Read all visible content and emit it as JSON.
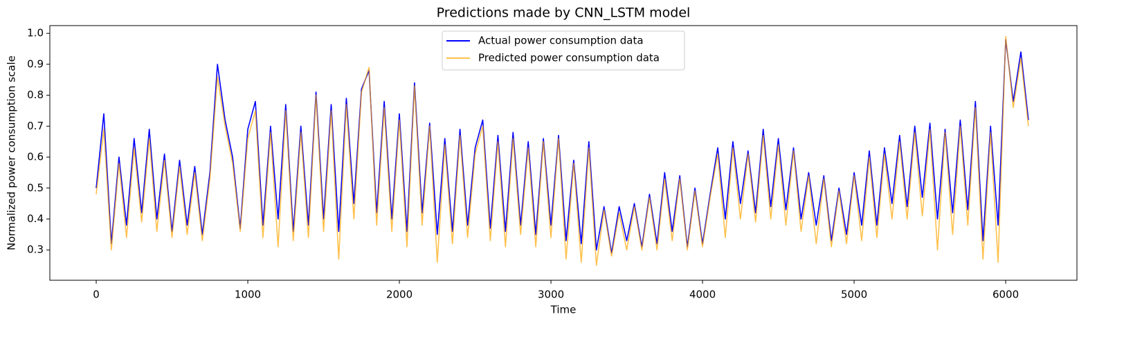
{
  "chart_data": {
    "type": "line",
    "title": "Predictions made by CNN_LSTM model",
    "xlabel": "Time",
    "ylabel": "Normalized power consumption scale",
    "x": [
      0,
      50,
      100,
      150,
      200,
      250,
      300,
      350,
      400,
      450,
      500,
      550,
      600,
      650,
      700,
      750,
      800,
      850,
      900,
      950,
      1000,
      1050,
      1100,
      1150,
      1200,
      1250,
      1300,
      1350,
      1400,
      1450,
      1500,
      1550,
      1600,
      1650,
      1700,
      1750,
      1800,
      1850,
      1900,
      1950,
      2000,
      2050,
      2100,
      2150,
      2200,
      2250,
      2300,
      2350,
      2400,
      2450,
      2500,
      2550,
      2600,
      2650,
      2700,
      2750,
      2800,
      2850,
      2900,
      2950,
      3000,
      3050,
      3100,
      3150,
      3200,
      3250,
      3300,
      3350,
      3400,
      3450,
      3500,
      3550,
      3600,
      3650,
      3700,
      3750,
      3800,
      3850,
      3900,
      3950,
      4000,
      4050,
      4100,
      4150,
      4200,
      4250,
      4300,
      4350,
      4400,
      4450,
      4500,
      4550,
      4600,
      4650,
      4700,
      4750,
      4800,
      4850,
      4900,
      4950,
      5000,
      5050,
      5100,
      5150,
      5200,
      5250,
      5300,
      5350,
      5400,
      5450,
      5500,
      5550,
      5600,
      5650,
      5700,
      5750,
      5800,
      5850,
      5900,
      5950,
      6000,
      6050,
      6100,
      6150
    ],
    "series": [
      {
        "name": "Actual power consumption data",
        "color": "#0000ff",
        "values": [
          0.5,
          0.74,
          0.32,
          0.6,
          0.38,
          0.66,
          0.42,
          0.69,
          0.4,
          0.61,
          0.36,
          0.59,
          0.38,
          0.57,
          0.35,
          0.55,
          0.9,
          0.72,
          0.6,
          0.37,
          0.69,
          0.78,
          0.38,
          0.7,
          0.4,
          0.77,
          0.36,
          0.7,
          0.38,
          0.81,
          0.4,
          0.77,
          0.36,
          0.79,
          0.45,
          0.82,
          0.88,
          0.42,
          0.78,
          0.4,
          0.74,
          0.36,
          0.84,
          0.42,
          0.71,
          0.35,
          0.66,
          0.36,
          0.69,
          0.38,
          0.63,
          0.72,
          0.37,
          0.67,
          0.36,
          0.68,
          0.38,
          0.65,
          0.35,
          0.66,
          0.38,
          0.67,
          0.33,
          0.59,
          0.32,
          0.65,
          0.3,
          0.44,
          0.29,
          0.44,
          0.33,
          0.45,
          0.31,
          0.48,
          0.32,
          0.55,
          0.36,
          0.54,
          0.31,
          0.5,
          0.32,
          0.48,
          0.63,
          0.4,
          0.65,
          0.45,
          0.62,
          0.42,
          0.69,
          0.44,
          0.66,
          0.43,
          0.63,
          0.4,
          0.55,
          0.38,
          0.54,
          0.33,
          0.5,
          0.35,
          0.55,
          0.38,
          0.62,
          0.38,
          0.63,
          0.45,
          0.67,
          0.44,
          0.7,
          0.47,
          0.71,
          0.4,
          0.69,
          0.42,
          0.72,
          0.43,
          0.78,
          0.33,
          0.7,
          0.38,
          0.98,
          0.78,
          0.94,
          0.72
        ]
      },
      {
        "name": "Predicted power consumption data",
        "color": "#ffa500",
        "values": [
          0.48,
          0.69,
          0.3,
          0.58,
          0.34,
          0.63,
          0.39,
          0.66,
          0.36,
          0.59,
          0.34,
          0.57,
          0.35,
          0.55,
          0.33,
          0.53,
          0.86,
          0.7,
          0.58,
          0.36,
          0.66,
          0.75,
          0.34,
          0.68,
          0.31,
          0.75,
          0.33,
          0.68,
          0.34,
          0.8,
          0.36,
          0.75,
          0.27,
          0.77,
          0.4,
          0.81,
          0.89,
          0.38,
          0.76,
          0.36,
          0.72,
          0.31,
          0.83,
          0.38,
          0.7,
          0.26,
          0.64,
          0.32,
          0.67,
          0.34,
          0.61,
          0.7,
          0.33,
          0.65,
          0.31,
          0.66,
          0.35,
          0.63,
          0.31,
          0.65,
          0.34,
          0.66,
          0.27,
          0.58,
          0.26,
          0.63,
          0.25,
          0.43,
          0.28,
          0.42,
          0.3,
          0.44,
          0.3,
          0.47,
          0.3,
          0.53,
          0.33,
          0.53,
          0.3,
          0.49,
          0.31,
          0.47,
          0.61,
          0.34,
          0.63,
          0.4,
          0.61,
          0.39,
          0.67,
          0.4,
          0.64,
          0.38,
          0.62,
          0.36,
          0.54,
          0.32,
          0.53,
          0.31,
          0.49,
          0.32,
          0.54,
          0.33,
          0.6,
          0.34,
          0.61,
          0.4,
          0.65,
          0.4,
          0.68,
          0.41,
          0.69,
          0.3,
          0.68,
          0.35,
          0.7,
          0.38,
          0.76,
          0.27,
          0.68,
          0.26,
          0.99,
          0.76,
          0.92,
          0.7
        ]
      }
    ],
    "xlim": [
      -306,
      6470
    ],
    "ylim": [
      0.202,
      1.025
    ],
    "xticks": [
      0,
      1000,
      2000,
      3000,
      4000,
      5000,
      6000
    ],
    "yticks": [
      0.3,
      0.4,
      0.5,
      0.6,
      0.7,
      0.8,
      0.9,
      {
        "value": 1,
        "label": "1.0"
      }
    ],
    "grid": false,
    "legend": "upper center"
  }
}
